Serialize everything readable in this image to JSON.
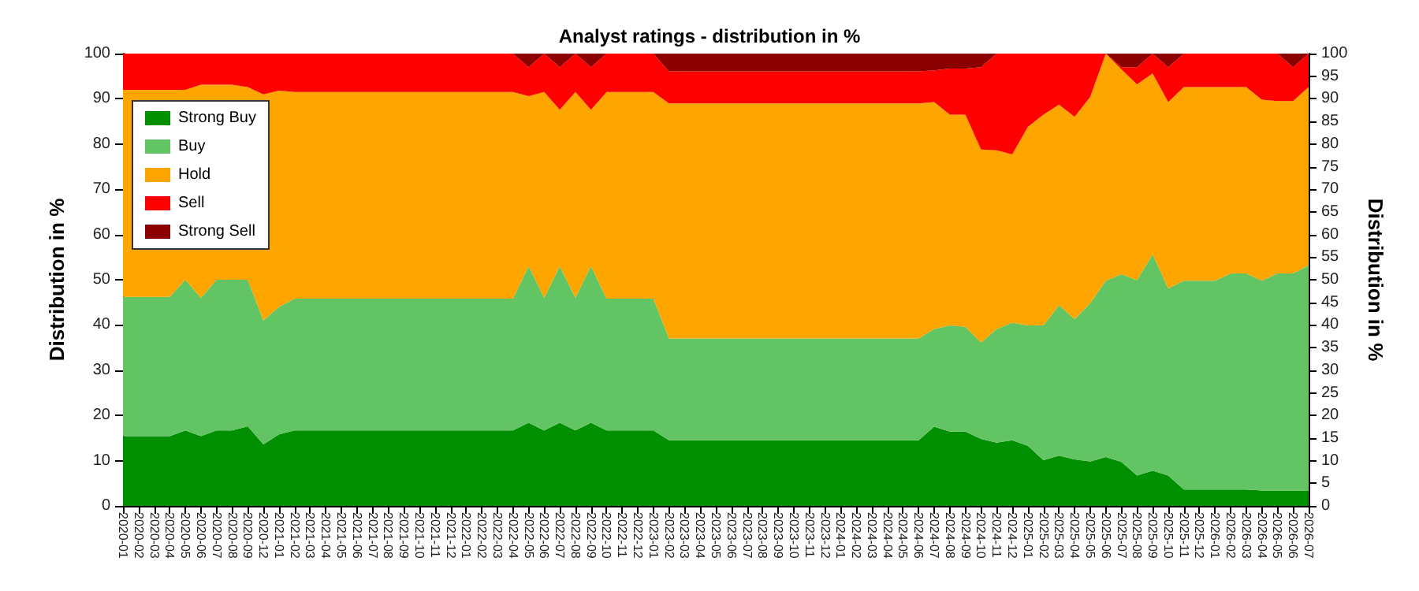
{
  "chart_data": {
    "type": "area",
    "title": "Analyst ratings - distribution in %",
    "ylabel": "Distribution in %",
    "y2label": "Distribution in %",
    "categories": [
      "2020-01",
      "2020-02",
      "2020-03",
      "2020-04",
      "2020-05",
      "2020-06",
      "2020-07",
      "2020-08",
      "2020-09",
      "2020-12",
      "2021-01",
      "2021-02",
      "2021-03",
      "2021-04",
      "2021-05",
      "2021-06",
      "2021-07",
      "2021-08",
      "2021-09",
      "2021-10",
      "2021-11",
      "2021-12",
      "2022-01",
      "2022-02",
      "2022-03",
      "2022-04",
      "2022-05",
      "2022-06",
      "2022-07",
      "2022-08",
      "2022-09",
      "2022-10",
      "2022-11",
      "2022-12",
      "2023-01",
      "2023-02",
      "2023-03",
      "2023-04",
      "2023-05",
      "2023-06",
      "2023-07",
      "2023-08",
      "2023-09",
      "2023-10",
      "2023-11",
      "2023-12",
      "2024-01",
      "2024-02",
      "2024-03",
      "2024-04",
      "2024-05",
      "2024-06",
      "2024-07",
      "2024-08",
      "2024-09",
      "2024-10",
      "2024-11",
      "2024-12",
      "2025-01",
      "2025-02",
      "2025-03",
      "2025-04",
      "2025-05",
      "2025-06",
      "2025-07",
      "2025-08",
      "2025-09",
      "2025-10",
      "2025-11",
      "2025-12",
      "2026-01",
      "2026-02",
      "2026-03",
      "2026-04",
      "2026-05",
      "2026-06",
      "2026-07"
    ],
    "stacked": true,
    "series": [
      {
        "name": "Strong Buy",
        "color": "#008f00",
        "values": [
          15.4,
          15.4,
          15.4,
          15.4,
          16.7,
          15.4,
          16.7,
          16.7,
          17.6,
          13.6,
          15.8,
          16.7,
          16.7,
          16.7,
          16.7,
          16.7,
          16.7,
          16.7,
          16.7,
          16.7,
          16.7,
          16.7,
          16.7,
          16.7,
          16.7,
          16.7,
          18.4,
          16.7,
          18.4,
          16.7,
          18.4,
          16.7,
          16.7,
          16.7,
          16.7,
          14.5,
          14.5,
          14.5,
          14.5,
          14.5,
          14.5,
          14.5,
          14.5,
          14.5,
          14.5,
          14.5,
          14.5,
          14.5,
          14.5,
          14.5,
          14.5,
          14.5,
          17.5,
          16.4,
          16.4,
          14.8,
          14,
          14.5,
          13.3,
          10.1,
          11.1,
          10.3,
          9.8,
          10.8,
          9.7,
          6.7,
          7.8,
          6.7,
          3.6,
          3.6,
          3.6,
          3.6,
          3.6,
          3.4,
          3.4,
          3.4,
          3.4
        ]
      },
      {
        "name": "Buy",
        "color": "#62c462",
        "values": [
          30.8,
          30.8,
          30.8,
          30.8,
          33.3,
          30.6,
          33.3,
          33.3,
          32.4,
          27.4,
          28.2,
          29.1,
          29.1,
          29.1,
          29.1,
          29.1,
          29.1,
          29.1,
          29.1,
          29.1,
          29.1,
          29.1,
          29.1,
          29.1,
          29.1,
          29.1,
          34.6,
          29.3,
          34.6,
          29.3,
          34.6,
          29.1,
          29.1,
          29.1,
          29.1,
          22.5,
          22.5,
          22.5,
          22.5,
          22.5,
          22.5,
          22.5,
          22.5,
          22.5,
          22.5,
          22.5,
          22.5,
          22.5,
          22.5,
          22.5,
          22.5,
          22.5,
          21.6,
          23.5,
          23.2,
          21.3,
          25.1,
          26,
          26.6,
          29.8,
          33.3,
          31,
          35,
          39,
          41.5,
          43.2,
          47.8,
          41.4,
          46.2,
          46.2,
          46.2,
          47.8,
          47.8,
          46.4,
          48,
          48,
          49.8
        ]
      },
      {
        "name": "Hold",
        "color": "#ffa500",
        "values": [
          45.8,
          45.8,
          45.8,
          45.8,
          42,
          47.1,
          43.1,
          43.1,
          42.6,
          50,
          47.8,
          45.7,
          45.7,
          45.7,
          45.7,
          45.7,
          45.7,
          45.7,
          45.7,
          45.7,
          45.7,
          45.7,
          45.7,
          45.7,
          45.7,
          45.7,
          37.6,
          45.5,
          34.6,
          45.5,
          34.6,
          45.7,
          45.7,
          45.7,
          45.7,
          52,
          52,
          52,
          52,
          52,
          52,
          52,
          52,
          52,
          52,
          52,
          52,
          52,
          52,
          52,
          52,
          52,
          50.2,
          46.6,
          46.9,
          42.7,
          39.5,
          37.2,
          43.9,
          46.6,
          44.3,
          44.7,
          45.6,
          50.2,
          45.3,
          43.3,
          40,
          41.2,
          42.8,
          42.8,
          42.8,
          41.2,
          41.2,
          40,
          38.1,
          38.1,
          39.4
        ]
      },
      {
        "name": "Sell",
        "color": "#ff0000",
        "values": [
          8,
          8,
          8,
          8,
          8,
          6.9,
          6.9,
          6.9,
          7.4,
          9,
          8.2,
          8.5,
          8.5,
          8.5,
          8.5,
          8.5,
          8.5,
          8.5,
          8.5,
          8.5,
          8.5,
          8.5,
          8.5,
          8.5,
          8.5,
          8.5,
          6.4,
          8.5,
          9.4,
          8.5,
          9.4,
          8.5,
          8.5,
          8.5,
          8.5,
          7.1,
          7.1,
          7.1,
          7.1,
          7.1,
          7.1,
          7.1,
          7.1,
          7.1,
          7.1,
          7.1,
          7.1,
          7.1,
          7.1,
          7.1,
          7.1,
          7.1,
          7,
          10.2,
          10.2,
          18.2,
          21.4,
          22.3,
          16.2,
          13.5,
          11.3,
          14,
          9.6,
          0,
          0.5,
          3.8,
          4.4,
          7.7,
          7.4,
          7.4,
          7.4,
          7.4,
          7.4,
          10.2,
          10.5,
          7.5,
          7.4
        ]
      },
      {
        "name": "Strong Sell",
        "color": "#8b0000",
        "values": [
          0,
          0,
          0,
          0,
          0,
          0,
          0,
          0,
          0,
          0,
          0,
          0,
          0,
          0,
          0,
          0,
          0,
          0,
          0,
          0,
          0,
          0,
          0,
          0,
          0,
          0,
          3,
          0,
          3,
          0,
          3,
          0,
          0,
          0,
          0,
          3.9,
          3.9,
          3.9,
          3.9,
          3.9,
          3.9,
          3.9,
          3.9,
          3.9,
          3.9,
          3.9,
          3.9,
          3.9,
          3.9,
          3.9,
          3.9,
          3.9,
          3.7,
          3.3,
          3.3,
          3,
          0,
          0,
          0,
          0,
          0,
          0,
          0,
          0,
          3,
          3,
          0,
          3,
          0,
          0,
          0,
          0,
          0,
          0,
          0,
          3,
          0
        ]
      }
    ],
    "ylim": [
      0,
      100
    ],
    "yticks": [
      0,
      10,
      20,
      30,
      40,
      50,
      60,
      70,
      80,
      90,
      100
    ],
    "y2lim": [
      0,
      100
    ],
    "y2ticks": [
      0,
      5,
      10,
      15,
      20,
      25,
      30,
      35,
      40,
      45,
      50,
      55,
      60,
      65,
      70,
      75,
      80,
      85,
      90,
      95,
      100
    ],
    "grid": "y",
    "legend": "top left"
  }
}
